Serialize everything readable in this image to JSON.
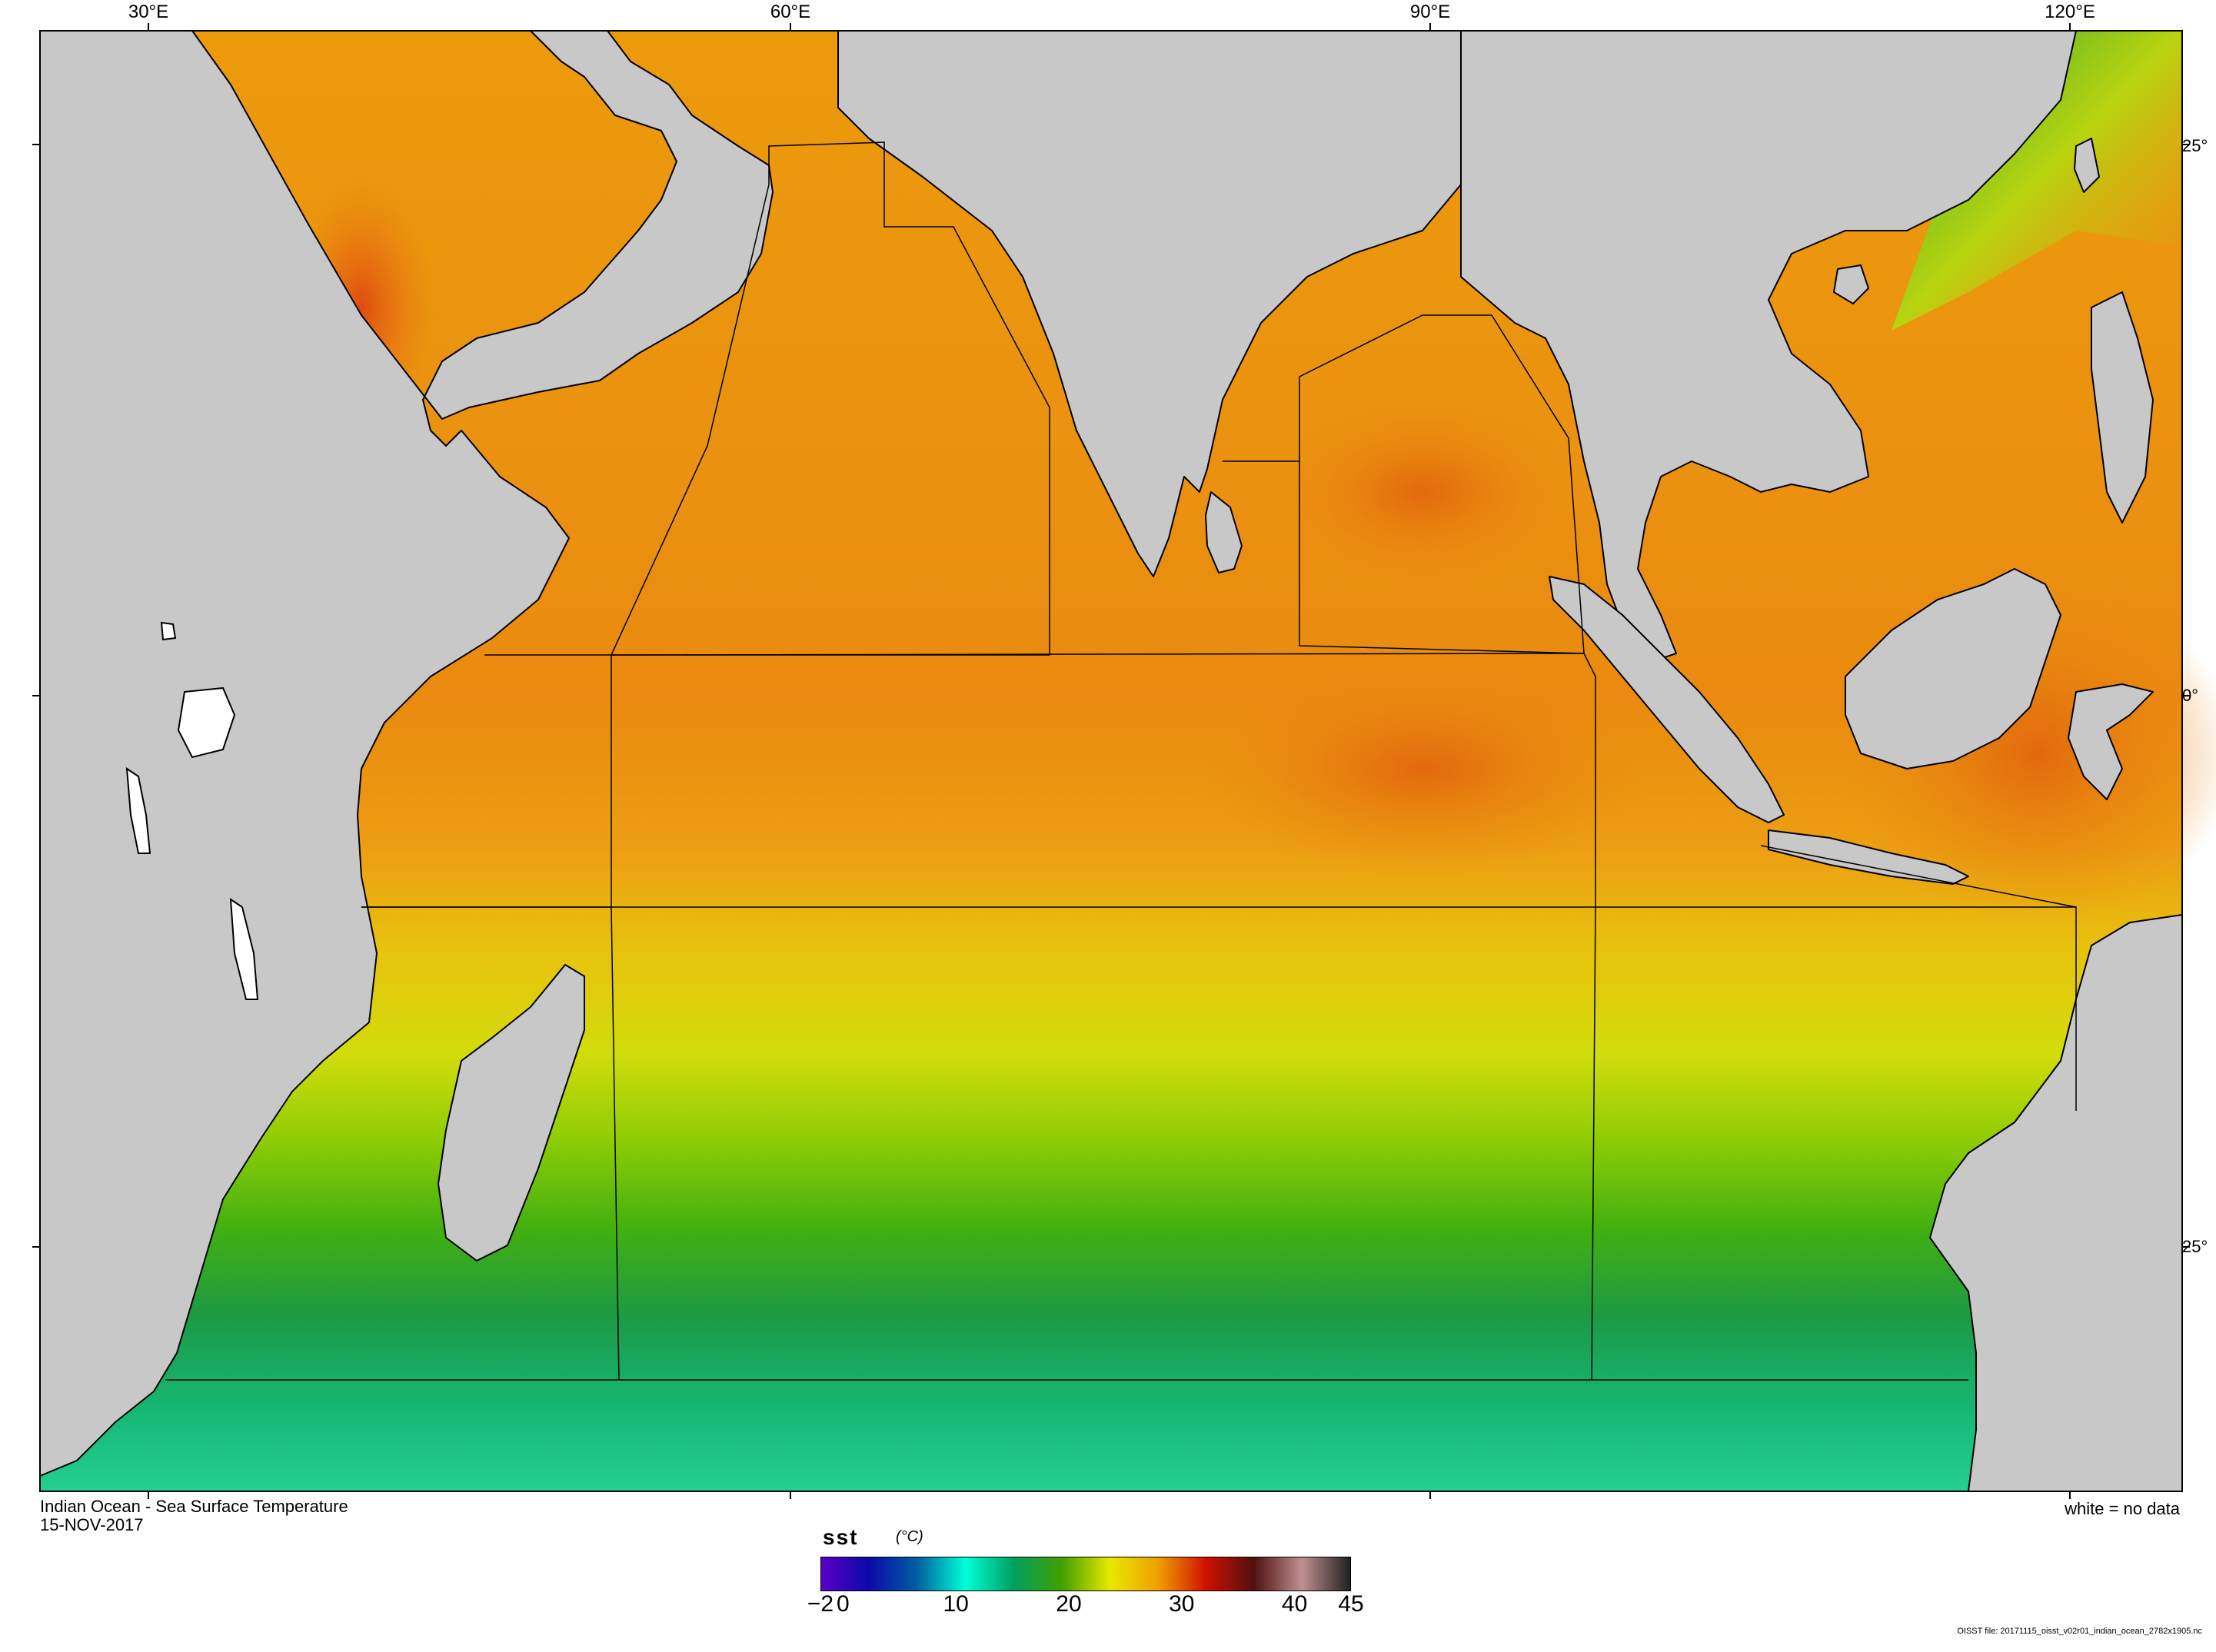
{
  "map": {
    "title": "Indian Ocean - Sea Surface Temperature",
    "date": "15-NOV-2017",
    "no_data_note": "white = no data",
    "file_info": "OISST file: 20171115_oisst_v02r01_indian_ocean_2782x1905.nc",
    "variable": "sst",
    "units": "(°C)",
    "longitude_labels": [
      "30°E",
      "60°E",
      "90°E",
      "120°E"
    ],
    "latitude_labels": [
      "25°",
      "0°",
      "25°"
    ],
    "land_color": "#c8c8c8",
    "coastline_color": "#000000"
  },
  "colorbar": {
    "range": [
      -2,
      45
    ],
    "tick_labels": [
      "−2",
      "0",
      "10",
      "20",
      "30",
      "40",
      "45"
    ],
    "colors": [
      "#5a00c8",
      "#0a0aa8",
      "#0060a0",
      "#00ffd8",
      "#00a060",
      "#40a000",
      "#e8e800",
      "#f0a000",
      "#d01000",
      "#501010",
      "#c09090",
      "#202020"
    ]
  }
}
